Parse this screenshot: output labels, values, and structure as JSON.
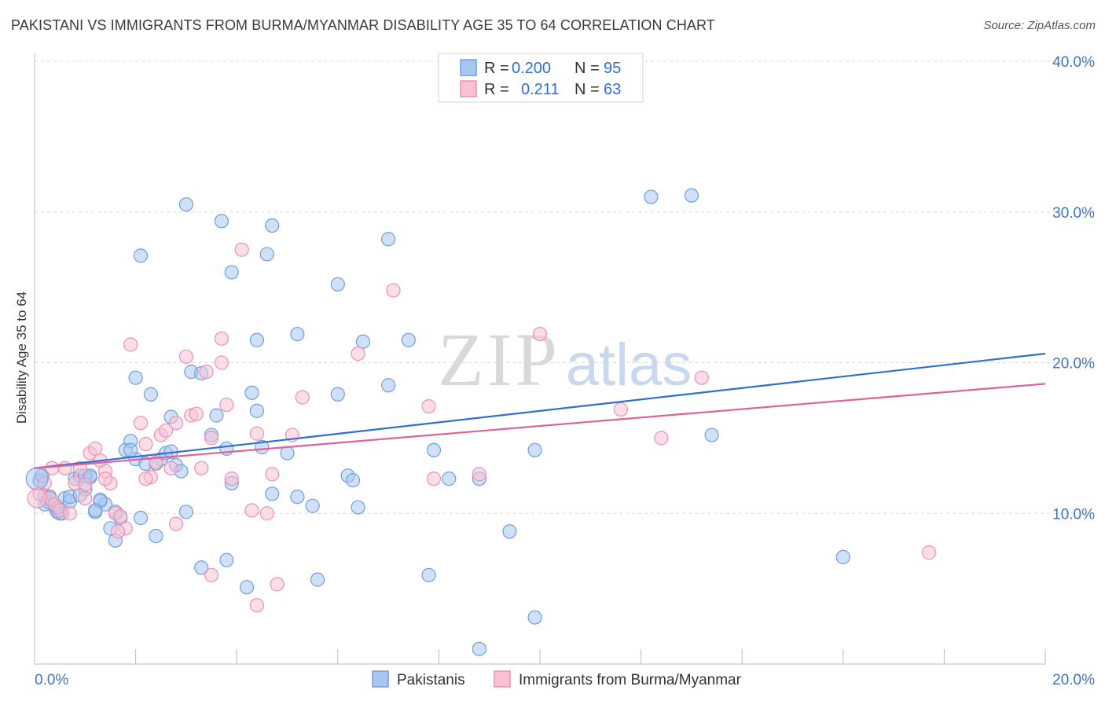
{
  "title": "PAKISTANI VS IMMIGRANTS FROM BURMA/MYANMAR DISABILITY AGE 35 TO 64 CORRELATION CHART",
  "source": "Source: ZipAtlas.com",
  "watermark": {
    "zip": "ZIP",
    "atlas": "atlas"
  },
  "chart_data": {
    "type": "scatter",
    "title": "PAKISTANI VS IMMIGRANTS FROM BURMA/MYANMAR DISABILITY AGE 35 TO 64 CORRELATION CHART",
    "xlabel": "",
    "ylabel": "Disability Age 35 to 64",
    "xlim": [
      0,
      20
    ],
    "ylim": [
      0,
      40
    ],
    "x_tick_labels": [
      "0.0%",
      "20.0%"
    ],
    "y_ticks": [
      10,
      20,
      30,
      40
    ],
    "y_tick_labels": [
      "10.0%",
      "20.0%",
      "30.0%",
      "40.0%"
    ],
    "grid": "horizontal dashed",
    "legend": {
      "placement": "top-center",
      "rows": [
        {
          "r_label": "R =",
          "r_value": "0.200",
          "n_label": "N =",
          "n_value": "95"
        },
        {
          "r_label": "R =",
          "r_value": "0.211",
          "n_label": "N =",
          "n_value": "63"
        }
      ]
    },
    "series": [
      {
        "name": "Pakistanis",
        "color": "#6f9fe0",
        "fill": "#a9c6ef",
        "line_color": "#2f6fd1",
        "trend": {
          "x": [
            0,
            20
          ],
          "y": [
            13.0,
            20.6
          ]
        },
        "points": [
          [
            0.1,
            12.2
          ],
          [
            0.2,
            11.2
          ],
          [
            0.25,
            10.8
          ],
          [
            0.3,
            11.0
          ],
          [
            0.35,
            10.6
          ],
          [
            0.4,
            10.4
          ],
          [
            0.45,
            10.1
          ],
          [
            0.5,
            10.0
          ],
          [
            0.6,
            11.0
          ],
          [
            0.7,
            10.8
          ],
          [
            0.8,
            12.3
          ],
          [
            0.9,
            12.5
          ],
          [
            1.0,
            11.6
          ],
          [
            1.1,
            12.4
          ],
          [
            1.2,
            10.1
          ],
          [
            1.3,
            10.8
          ],
          [
            1.4,
            10.6
          ],
          [
            1.5,
            9.0
          ],
          [
            1.6,
            8.2
          ],
          [
            1.7,
            9.7
          ],
          [
            1.8,
            14.2
          ],
          [
            1.9,
            14.8
          ],
          [
            2.0,
            13.6
          ],
          [
            2.1,
            9.7
          ],
          [
            2.2,
            13.3
          ],
          [
            2.3,
            17.9
          ],
          [
            2.4,
            8.5
          ],
          [
            2.5,
            13.6
          ],
          [
            2.6,
            14.0
          ],
          [
            2.7,
            16.4
          ],
          [
            2.8,
            13.2
          ],
          [
            2.9,
            12.8
          ],
          [
            3.0,
            10.1
          ],
          [
            3.1,
            19.4
          ],
          [
            3.3,
            19.3
          ],
          [
            3.5,
            15.2
          ],
          [
            3.6,
            16.5
          ],
          [
            3.8,
            14.3
          ],
          [
            3.9,
            12.0
          ],
          [
            4.3,
            18.0
          ],
          [
            4.4,
            16.8
          ],
          [
            4.5,
            14.4
          ],
          [
            4.7,
            11.3
          ],
          [
            5.0,
            14.0
          ],
          [
            5.2,
            11.1
          ],
          [
            5.5,
            10.5
          ],
          [
            6.2,
            12.5
          ],
          [
            6.3,
            12.2
          ],
          [
            6.4,
            10.4
          ],
          [
            6.5,
            21.4
          ],
          [
            7.0,
            18.5
          ],
          [
            7.9,
            14.2
          ],
          [
            8.2,
            12.3
          ],
          [
            8.8,
            12.3
          ],
          [
            9.4,
            8.8
          ],
          [
            9.9,
            14.2
          ],
          [
            12.2,
            31.0
          ],
          [
            13.0,
            31.1
          ],
          [
            13.4,
            15.2
          ],
          [
            16.0,
            7.1
          ],
          [
            2.1,
            27.1
          ],
          [
            3.0,
            30.5
          ],
          [
            3.7,
            29.4
          ],
          [
            3.9,
            26.0
          ],
          [
            4.6,
            27.2
          ],
          [
            4.7,
            29.1
          ],
          [
            6.0,
            25.2
          ],
          [
            7.0,
            28.2
          ],
          [
            5.2,
            21.9
          ],
          [
            4.4,
            21.5
          ],
          [
            7.4,
            21.5
          ],
          [
            6.0,
            17.9
          ],
          [
            2.0,
            19.0
          ],
          [
            3.3,
            6.4
          ],
          [
            3.8,
            6.9
          ],
          [
            4.2,
            5.1
          ],
          [
            5.6,
            5.6
          ],
          [
            7.8,
            5.9
          ],
          [
            9.9,
            3.1
          ],
          [
            8.8,
            1.0
          ],
          [
            0.15,
            12.5
          ],
          [
            0.3,
            11.1
          ],
          [
            0.55,
            10.0
          ],
          [
            1.0,
            12.5
          ],
          [
            1.3,
            10.9
          ],
          [
            1.6,
            10.1
          ],
          [
            2.4,
            13.3
          ],
          [
            1.9,
            14.2
          ],
          [
            0.7,
            11.1
          ],
          [
            1.2,
            10.2
          ],
          [
            0.2,
            10.6
          ],
          [
            0.45,
            10.4
          ],
          [
            2.7,
            14.1
          ],
          [
            0.9,
            11.2
          ],
          [
            1.1,
            12.5
          ]
        ]
      },
      {
        "name": "Immigrants from Burma/Myanmar",
        "color": "#f08fb0",
        "fill": "#f8c2d4",
        "line_color": "#e0609a",
        "trend": {
          "x": [
            0,
            20
          ],
          "y": [
            13.0,
            18.6
          ]
        },
        "points": [
          [
            0.1,
            11.3
          ],
          [
            0.2,
            12.0
          ],
          [
            0.3,
            11.0
          ],
          [
            0.4,
            10.6
          ],
          [
            0.5,
            10.2
          ],
          [
            0.6,
            13.0
          ],
          [
            0.7,
            10.0
          ],
          [
            0.8,
            12.0
          ],
          [
            0.9,
            13.0
          ],
          [
            1.0,
            11.0
          ],
          [
            1.1,
            14.0
          ],
          [
            1.2,
            14.3
          ],
          [
            1.3,
            13.5
          ],
          [
            1.4,
            12.8
          ],
          [
            1.5,
            12.0
          ],
          [
            1.6,
            10.0
          ],
          [
            1.7,
            9.8
          ],
          [
            1.8,
            9.0
          ],
          [
            1.9,
            21.2
          ],
          [
            2.1,
            16.0
          ],
          [
            2.2,
            14.6
          ],
          [
            2.3,
            12.4
          ],
          [
            2.4,
            13.4
          ],
          [
            2.5,
            15.2
          ],
          [
            2.6,
            15.5
          ],
          [
            2.7,
            13.0
          ],
          [
            2.8,
            16.0
          ],
          [
            3.0,
            20.4
          ],
          [
            3.1,
            16.5
          ],
          [
            3.2,
            16.6
          ],
          [
            3.3,
            13.0
          ],
          [
            3.4,
            19.4
          ],
          [
            3.5,
            15.0
          ],
          [
            3.7,
            20.0
          ],
          [
            3.8,
            17.2
          ],
          [
            3.9,
            12.3
          ],
          [
            4.1,
            27.5
          ],
          [
            4.3,
            10.2
          ],
          [
            4.4,
            15.3
          ],
          [
            4.6,
            10.0
          ],
          [
            4.7,
            12.6
          ],
          [
            5.1,
            15.2
          ],
          [
            5.3,
            17.7
          ],
          [
            6.4,
            20.6
          ],
          [
            7.1,
            24.8
          ],
          [
            7.8,
            17.1
          ],
          [
            7.9,
            12.3
          ],
          [
            8.8,
            12.6
          ],
          [
            10.0,
            21.9
          ],
          [
            11.6,
            16.9
          ],
          [
            12.4,
            15.0
          ],
          [
            13.2,
            19.0
          ],
          [
            17.7,
            7.4
          ],
          [
            3.5,
            5.9
          ],
          [
            4.4,
            3.9
          ],
          [
            4.8,
            5.3
          ],
          [
            2.8,
            9.3
          ],
          [
            1.65,
            8.8
          ],
          [
            0.35,
            13.0
          ],
          [
            1.0,
            11.9
          ],
          [
            1.4,
            12.3
          ],
          [
            2.2,
            12.3
          ],
          [
            3.7,
            21.6
          ]
        ]
      }
    ]
  },
  "bottom_legend": {
    "items": [
      {
        "label": "Pakistanis"
      },
      {
        "label": "Immigrants from Burma/Myanmar"
      }
    ]
  }
}
